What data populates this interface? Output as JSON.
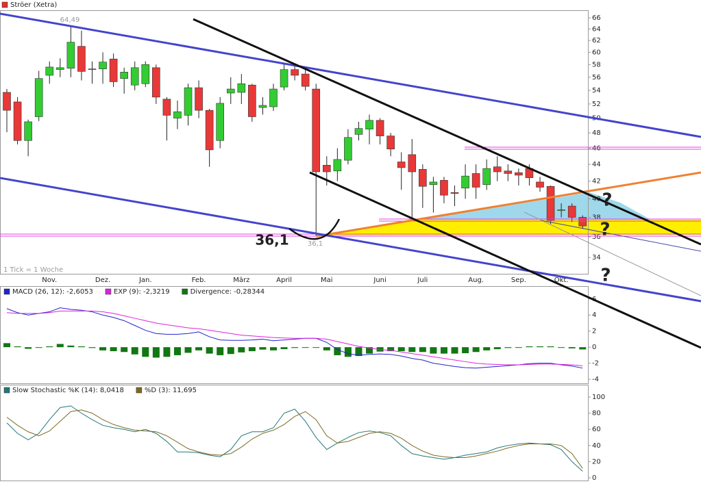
{
  "chart_data": [
    {
      "type": "candlestick",
      "title": "Ströer (Xetra)",
      "color": "#e03030",
      "up_color": "#33cc33",
      "down_color": "#e83838",
      "log_scale": true,
      "ylim": [
        32.5,
        67.4
      ],
      "yticks": [
        34,
        36,
        38,
        40,
        42,
        44,
        46,
        48,
        50,
        52,
        54,
        56,
        58,
        60,
        62,
        64,
        66
      ],
      "note": "1 Tick = 1 Woche",
      "annotations": [
        "36,1",
        "64,49",
        "36,1",
        "?",
        "?",
        "?"
      ],
      "categories": [
        null,
        null,
        null,
        null,
        "Nov.",
        null,
        null,
        null,
        null,
        "Dez.",
        null,
        null,
        null,
        "Jan.",
        null,
        null,
        null,
        null,
        "Feb.",
        null,
        null,
        null,
        "März",
        null,
        null,
        null,
        "April",
        null,
        null,
        null,
        "Mai",
        null,
        null,
        null,
        null,
        "Juni",
        null,
        null,
        null,
        "Juli",
        null,
        null,
        null,
        null,
        "Aug.",
        null,
        null,
        null,
        "Sep.",
        null,
        null,
        null,
        "Okt.",
        null,
        null
      ],
      "open": [
        53.7,
        52.3,
        47,
        50.2,
        56.3,
        57.2,
        57.4,
        61,
        57.2,
        57.3,
        58.9,
        55.8,
        54.8,
        55,
        57.5,
        52.7,
        50,
        50.4,
        54.4,
        51.1,
        47,
        53.6,
        53.7,
        54.8,
        51.5,
        51.6,
        54.5,
        57.2,
        56.5,
        54.2,
        43.9,
        43.2,
        44.5,
        47.8,
        48.5,
        49.7,
        47.6,
        44.3,
        45.2,
        43.4,
        41.6,
        42.1,
        40.7,
        41.2,
        42.9,
        41.6,
        43.7,
        43.2,
        43,
        43.5,
        41.9,
        41.4,
        38.8,
        39.2,
        38
      ],
      "high": [
        54.2,
        53,
        49.8,
        57,
        58.5,
        59,
        64.49,
        63.7,
        58.5,
        60,
        59.8,
        57.5,
        58.5,
        58.5,
        58,
        53,
        52.5,
        55,
        55.5,
        51.3,
        53,
        56,
        56.5,
        55,
        53,
        55,
        58,
        58,
        57.5,
        55,
        45,
        46,
        48.5,
        49.5,
        50.5,
        50,
        48,
        45.5,
        47.2,
        44,
        42.5,
        42.5,
        41.5,
        44,
        44,
        44.6,
        45,
        44,
        43.5,
        44,
        42.5,
        41.5,
        39.5,
        39.5,
        38.2
      ],
      "low": [
        48.1,
        46.5,
        45,
        49.6,
        55,
        56,
        56,
        55.5,
        55,
        55,
        54.5,
        53.5,
        54,
        54.5,
        52,
        47,
        48.5,
        49,
        50,
        43.7,
        46,
        52,
        52,
        49.5,
        50.5,
        51,
        54,
        55.5,
        54,
        36.1,
        41.5,
        42,
        44,
        47,
        46.5,
        46.5,
        45,
        41,
        37.8,
        39,
        38.5,
        39.5,
        39.2,
        40,
        40,
        41,
        42,
        42,
        41.5,
        41.5,
        40.8,
        37.3,
        38,
        37.5,
        36.8
      ],
      "close": [
        51.1,
        47,
        49.5,
        55.8,
        57.6,
        57.5,
        61.7,
        56.9,
        57.3,
        58.4,
        55.3,
        56.8,
        57.5,
        58,
        53,
        50.4,
        50.9,
        54.4,
        51.1,
        45.8,
        52.1,
        54.2,
        55,
        50.2,
        51.8,
        54.2,
        57.2,
        56.3,
        54.6,
        43.1,
        43.1,
        44.6,
        47.4,
        48.6,
        49.7,
        47.6,
        45.9,
        43.6,
        43.1,
        41.4,
        41.9,
        40.4,
        40.6,
        42.6,
        41.3,
        43.5,
        43.1,
        42.9,
        42.7,
        42.4,
        41.3,
        37.7,
        38.8,
        38,
        37.1
      ]
    },
    {
      "type": "macd",
      "ylim": [
        -4.5,
        7.6
      ],
      "yticks": [
        -4,
        -2,
        0,
        2,
        4,
        6
      ],
      "series": [
        {
          "name": "MACD (26, 12): -2,6053",
          "kind": "line",
          "color": "#2222cc",
          "values": [
            4.8,
            4.3,
            4.0,
            4.2,
            4.4,
            4.9,
            4.7,
            4.6,
            4.4,
            4.0,
            3.7,
            3.3,
            2.7,
            2.1,
            1.7,
            1.6,
            1.6,
            1.7,
            1.9,
            1.3,
            0.9,
            0.85,
            0.85,
            0.9,
            1.0,
            0.8,
            0.9,
            1.0,
            1.1,
            1.1,
            0.6,
            -0.3,
            -0.8,
            -1.0,
            -0.9,
            -0.85,
            -0.9,
            -1.1,
            -1.4,
            -1.6,
            -2.0,
            -2.2,
            -2.4,
            -2.55,
            -2.6,
            -2.5,
            -2.4,
            -2.3,
            -2.2,
            -2.05,
            -2.0,
            -2.0,
            -2.2,
            -2.35,
            -2.61
          ]
        },
        {
          "name": "EXP (9): -2,3219",
          "kind": "line",
          "color": "#dd22dd",
          "values": [
            4.3,
            4.2,
            4.2,
            4.2,
            4.3,
            4.5,
            4.5,
            4.5,
            4.5,
            4.4,
            4.2,
            3.9,
            3.6,
            3.3,
            3.0,
            2.8,
            2.6,
            2.4,
            2.3,
            2.1,
            1.9,
            1.7,
            1.5,
            1.4,
            1.3,
            1.2,
            1.15,
            1.1,
            1.1,
            1.1,
            1.0,
            0.7,
            0.4,
            0.1,
            -0.1,
            -0.3,
            -0.4,
            -0.6,
            -0.8,
            -1.0,
            -1.2,
            -1.4,
            -1.6,
            -1.8,
            -2.0,
            -2.1,
            -2.15,
            -2.2,
            -2.2,
            -2.15,
            -2.1,
            -2.1,
            -2.15,
            -2.2,
            -2.32
          ]
        },
        {
          "name": "Divergence: -0,28344",
          "kind": "bar",
          "color": "#117711",
          "values": [
            0.5,
            0.1,
            -0.2,
            0,
            0.1,
            0.4,
            0.2,
            0.1,
            -0.1,
            -0.4,
            -0.5,
            -0.6,
            -0.9,
            -1.2,
            -1.3,
            -1.2,
            -1.0,
            -0.7,
            -0.4,
            -0.8,
            -1.0,
            -0.85,
            -0.65,
            -0.5,
            -0.3,
            -0.4,
            -0.25,
            -0.1,
            0,
            0,
            -0.4,
            -1.0,
            -1.2,
            -1.1,
            -0.8,
            -0.55,
            -0.5,
            -0.5,
            -0.6,
            -0.6,
            -0.8,
            -0.8,
            -0.8,
            -0.75,
            -0.6,
            -0.4,
            -0.25,
            -0.1,
            0,
            0.1,
            0.1,
            0.1,
            -0.05,
            -0.15,
            -0.28
          ]
        }
      ]
    },
    {
      "type": "line",
      "ylim": [
        -3.4,
        115.3
      ],
      "yticks": [
        0,
        20,
        40,
        60,
        80,
        100
      ],
      "series": [
        {
          "name": "Slow Stochastic %K (14): 8,0418",
          "color": "#227777",
          "values": [
            68,
            55,
            47,
            55,
            72,
            87,
            89,
            80,
            72,
            65,
            62,
            60,
            57,
            60,
            55,
            45,
            32,
            32,
            31,
            28,
            26,
            35,
            52,
            57,
            57,
            62,
            80,
            85,
            70,
            50,
            35,
            43,
            50,
            56,
            58,
            56,
            52,
            40,
            30,
            27,
            25,
            23,
            25,
            28,
            30,
            32,
            37,
            40,
            42,
            43,
            42,
            41,
            35,
            20,
            8.04
          ]
        },
        {
          "name": "%D (3): 11,695",
          "color": "#7a6a22",
          "values": [
            75,
            65,
            57,
            52,
            58,
            70,
            82,
            84,
            80,
            72,
            66,
            62,
            59,
            58,
            57,
            52,
            44,
            36,
            32,
            29,
            28,
            30,
            38,
            48,
            55,
            59,
            66,
            76,
            82,
            72,
            52,
            43,
            45,
            50,
            55,
            57,
            55,
            49,
            40,
            33,
            28,
            26,
            25,
            25,
            27,
            30,
            33,
            37,
            40,
            42,
            42,
            42,
            40,
            30,
            11.695
          ]
        }
      ]
    }
  ]
}
